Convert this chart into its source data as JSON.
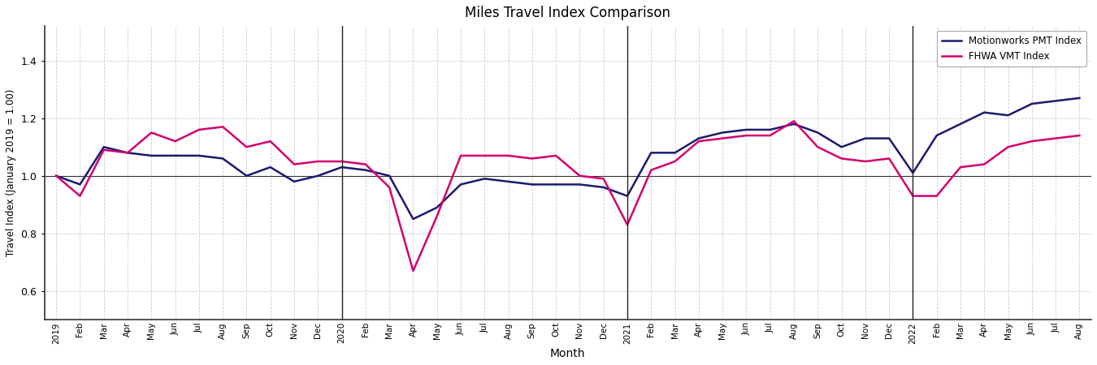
{
  "title": "Miles Travel Index Comparison",
  "xlabel": "Month",
  "ylabel": "Travel Index (January 2019 = 1.00)",
  "pmt_label": "Motionworks PMT Index",
  "vmt_label": "FHWA VMT Index",
  "pmt_color": "#1a1a6e",
  "vmt_color": "#d4006e",
  "ylim": [
    0.5,
    1.52
  ],
  "yticks": [
    0.6,
    0.8,
    1.0,
    1.2,
    1.4
  ],
  "background_color": "#ffffff",
  "grid_color": "#cccccc",
  "vlines": [
    12,
    24,
    36
  ],
  "labels": [
    "2019",
    "Feb",
    "Mar",
    "Apr",
    "May",
    "Jun",
    "Jul",
    "Aug",
    "Sep",
    "Oct",
    "Nov",
    "Dec",
    "2020",
    "Feb",
    "Mar",
    "Apr",
    "May",
    "Jun",
    "Jul",
    "Aug",
    "Sep",
    "Oct",
    "Nov",
    "Dec",
    "2021",
    "Feb",
    "Mar",
    "Apr",
    "May",
    "Jun",
    "Jul",
    "Aug",
    "Sep",
    "Oct",
    "Nov",
    "Dec",
    "2022",
    "Feb",
    "Mar",
    "Apr",
    "May",
    "Jun",
    "Jul",
    "Aug"
  ],
  "pmt_values": [
    1.0,
    0.97,
    1.1,
    1.08,
    1.07,
    1.07,
    1.07,
    1.06,
    1.0,
    1.03,
    0.98,
    1.0,
    1.03,
    1.02,
    1.0,
    0.85,
    0.89,
    0.97,
    0.99,
    0.98,
    0.97,
    0.97,
    0.97,
    0.96,
    0.93,
    1.08,
    1.08,
    1.13,
    1.15,
    1.16,
    1.16,
    1.18,
    1.15,
    1.1,
    1.13,
    1.13,
    1.01,
    1.14,
    1.18,
    1.22,
    1.21,
    1.25,
    1.26,
    1.27
  ],
  "vmt_values": [
    1.0,
    0.93,
    1.09,
    1.08,
    1.15,
    1.12,
    1.16,
    1.17,
    1.1,
    1.12,
    1.04,
    1.05,
    1.05,
    1.04,
    0.96,
    0.67,
    0.86,
    1.07,
    1.07,
    1.07,
    1.06,
    1.07,
    1.0,
    0.99,
    0.83,
    1.02,
    1.05,
    1.12,
    1.13,
    1.14,
    1.14,
    1.19,
    1.1,
    1.06,
    1.05,
    1.06,
    0.93,
    0.93,
    1.03,
    1.04,
    1.1,
    1.12,
    1.13,
    1.14
  ]
}
